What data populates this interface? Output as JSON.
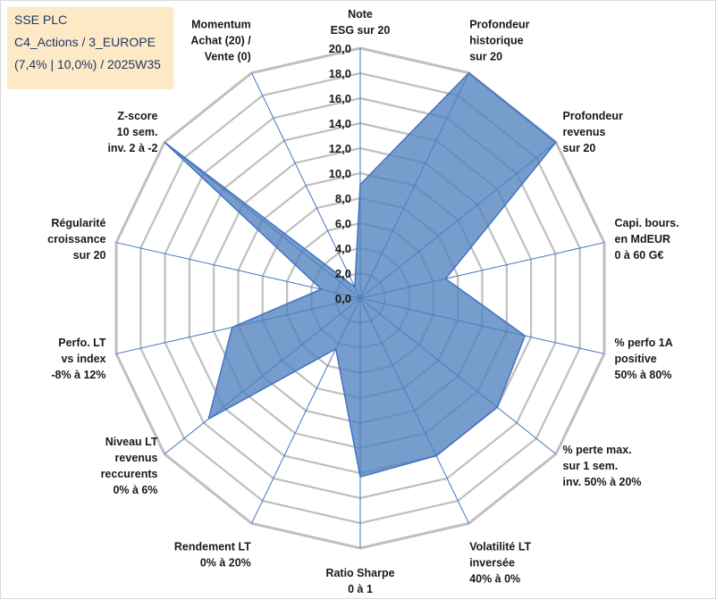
{
  "info_box": {
    "lines": [
      "SSE PLC",
      "C4_Actions / 3_EUROPE",
      "(7,4% | 10,0%) / 2025W35"
    ]
  },
  "colors": {
    "fill": "#4f81bd",
    "stroke": "#4472c4",
    "grid": "#bfbfbf",
    "spoke": "#4472c4",
    "info_bg": "#fde9c5"
  },
  "chart_data": {
    "type": "radar",
    "rmax": 20,
    "ticks": [
      "0,0",
      "2,0",
      "4,0",
      "6,0",
      "8,0",
      "10,0",
      "12,0",
      "14,0",
      "16,0",
      "18,0",
      "20,0"
    ],
    "axes": [
      {
        "label": [
          "Note",
          "ESG sur 20"
        ],
        "value": 9.1
      },
      {
        "label": [
          "Profondeur",
          "historique",
          "sur 20"
        ],
        "value": 20
      },
      {
        "label": [
          "Profondeur",
          "revenus",
          "sur 20"
        ],
        "value": 20
      },
      {
        "label": [
          "Capi. bours.",
          "en MdEUR",
          "0 à 60 G€"
        ],
        "value": 7
      },
      {
        "label": [
          "% perfo 1A",
          "positive",
          "50% à 80%"
        ],
        "value": 13.5
      },
      {
        "label": [
          "% perte max.",
          "sur 1 sem.",
          "inv. 50% à 20%"
        ],
        "value": 14
      },
      {
        "label": [
          "Volatilité LT",
          "inversée",
          "40% à 0%"
        ],
        "value": 14
      },
      {
        "label": [
          "Ratio Sharpe",
          "0 à 1"
        ],
        "value": 14.3
      },
      {
        "label": [
          "Rendement LT",
          "0% à 20%"
        ],
        "value": 4.5
      },
      {
        "label": [
          "Niveau LT",
          "revenus",
          "reccurents",
          "0% à 6%"
        ],
        "value": 15.5
      },
      {
        "label": [
          "Perfo. LT",
          "vs index",
          "-8% à 12%"
        ],
        "value": 10.5
      },
      {
        "label": [
          "Régularité",
          "croissance",
          "sur 20"
        ],
        "value": 3.2
      },
      {
        "label": [
          "Z-score",
          "10 sem.",
          "inv. 2 à -2"
        ],
        "value": 20
      },
      {
        "label": [
          "Momentum",
          "Achat (20) /",
          "Vente (0)"
        ],
        "value": 1
      }
    ]
  }
}
